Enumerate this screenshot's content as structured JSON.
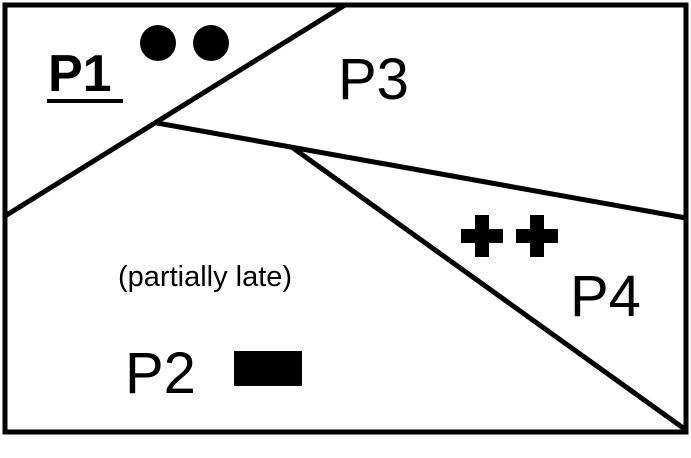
{
  "regions": {
    "p1": {
      "label": "P1",
      "marker": "two-filled-circles",
      "underlined": true
    },
    "p2": {
      "label": "P2",
      "note": "(partially late)",
      "marker": "filled-rectangle"
    },
    "p3": {
      "label": "P3"
    },
    "p4": {
      "label": "P4",
      "marker": "two-plus-signs"
    }
  },
  "colors": {
    "ink": "#000000",
    "background": "#ffffff"
  }
}
